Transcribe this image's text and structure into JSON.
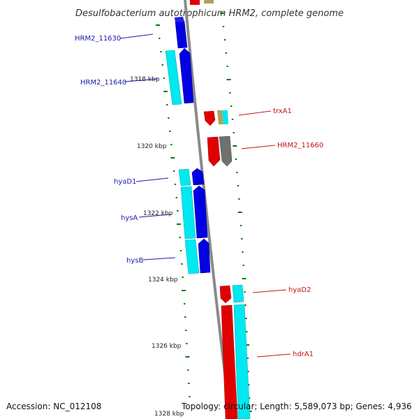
{
  "header": {
    "title": "Desulfobacterium autotrophicum HRM2, complete genome"
  },
  "footer": {
    "accession": "Accession: NC_012108",
    "topology": "Topology: circular; Length: 5,589,073 bp; Genes: 4,936"
  },
  "ruler": {
    "labels": [
      "1318 kbp",
      "1320 kbp",
      "1322 kbp",
      "1324 kbp",
      "1326 kbp",
      "1328 kbp"
    ]
  },
  "genes": {
    "left": [
      "HRM2_11630",
      "HRM2_11640",
      "hyaD1",
      "hysA",
      "hysB"
    ],
    "right": [
      "trxA1",
      "HRM2_11660",
      "hyaD2",
      "hdrA1"
    ]
  },
  "colors": {
    "backbone": "#8a8a8a",
    "strand_forward": "#0000e0",
    "strand_reverse": "#e00000",
    "cog_cyan": "#00e8f0",
    "cog_olive": "#b0a060",
    "cog_gray": "#707070",
    "tick": "#0a7a0a",
    "label_left": "#1a1aa6",
    "label_right": "#c41414"
  }
}
